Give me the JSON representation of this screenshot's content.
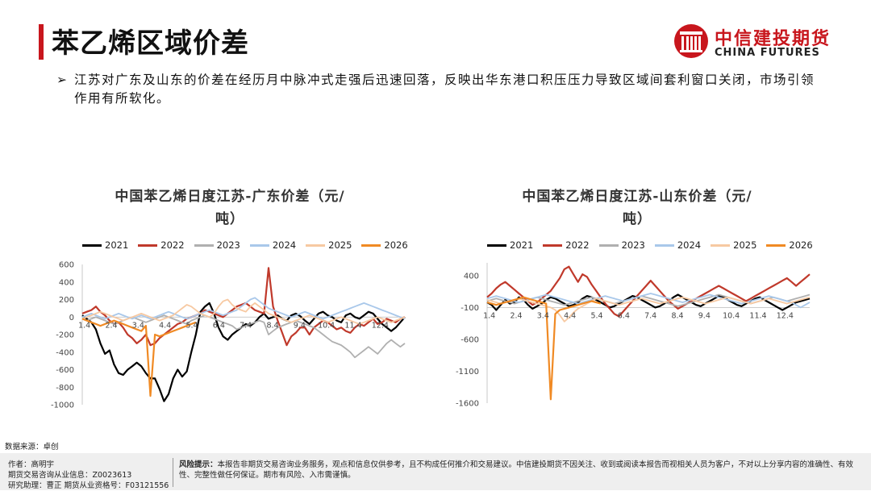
{
  "header": {
    "title": "苯乙烯区域价差",
    "logo_cn": "中信建投期货",
    "logo_en": "CHINA FUTURES"
  },
  "bullet": {
    "arrow": "➢",
    "text": "江苏对广东及山东的价差在经历月中脉冲式走强后迅速回落，反映出华东港口积压压力导致区域间套利窗口关闭，市场引领作用有所软化。"
  },
  "source": "数据来源：卓创",
  "footer": {
    "author": "作者：高明宇",
    "license": "期货交易咨询从业信息：Z0023613",
    "assistant": "研究助理：曹正  期货从业资格号：F03121556",
    "risk_label": "风险提示：",
    "risk_text": "本报告非期货交易咨询业务服务，观点和信息仅供参考，且不构成任何推介和交易建议。中信建投期货不因关注、收到或阅读本报告而视相关人员为客户，不对以上分享内容的准确性、有效性、完整性做任何保证。期市有风险、入市需谨慎。"
  },
  "colors": {
    "accent": "#c8161d",
    "2021": "#000000",
    "2022": "#c0392b",
    "2023": "#b0b0b0",
    "2024": "#a9c8ea",
    "2025": "#f7c9a2",
    "2026": "#f08a24"
  },
  "chart_data": [
    {
      "type": "line",
      "title": "中国苯乙烯日度江苏-广东价差（元/",
      "title2": "吨）",
      "x_ticks": [
        "1.4",
        "2.4",
        "3.4",
        "4.4",
        "5.4",
        "6.4",
        "7.4",
        "8.4",
        "9.4",
        "10.4",
        "11.4",
        "12.4"
      ],
      "y_ticks": [
        600,
        400,
        200,
        0,
        -200,
        -400,
        -600,
        -800,
        -1000
      ],
      "ylim": [
        -1000,
        600
      ],
      "legend": [
        "2021",
        "2022",
        "2023",
        "2024",
        "2025",
        "2026"
      ],
      "legend_position": "top",
      "grid": false,
      "series": [
        {
          "name": "2021",
          "values": [
            20,
            -20,
            -60,
            -140,
            -300,
            -420,
            -380,
            -540,
            -640,
            -660,
            -600,
            -560,
            -520,
            -560,
            -640,
            -700,
            -700,
            -820,
            -960,
            -880,
            -700,
            -600,
            -680,
            -620,
            -400,
            -200,
            60,
            120,
            160,
            40,
            -120,
            -220,
            -260,
            -200,
            -160,
            -120,
            -80,
            -100,
            -60,
            0,
            40,
            -20,
            0,
            20,
            -20,
            -40,
            20,
            40,
            10,
            -40,
            -80,
            -20,
            40,
            60,
            20,
            0,
            -40,
            -60,
            20,
            40,
            0,
            -20,
            20,
            60,
            40,
            -20,
            -80,
            -120,
            -160,
            -120,
            -60,
            0
          ]
        },
        {
          "name": "2022",
          "values": [
            40,
            60,
            80,
            120,
            60,
            20,
            -40,
            -80,
            -60,
            -120,
            -200,
            -240,
            -300,
            -260,
            -200,
            -320,
            -300,
            -240,
            -200,
            -160,
            -120,
            -80,
            -60,
            -20,
            0,
            20,
            40,
            80,
            60,
            40,
            20,
            0,
            40,
            80,
            120,
            140,
            160,
            120,
            80,
            60,
            40,
            560,
            120,
            -40,
            -180,
            -320,
            -220,
            -180,
            -120,
            -120,
            -200,
            -120,
            -80,
            -40,
            -60,
            -100,
            -140,
            -120,
            -160,
            -180,
            -120,
            -80,
            -100,
            -60,
            -20,
            -80,
            -60,
            -20,
            -40,
            -60,
            -20,
            0
          ]
        },
        {
          "name": "2023",
          "values": [
            -20,
            -40,
            -20,
            0,
            -20,
            -40,
            -60,
            -80,
            -60,
            -40,
            -20,
            0,
            -20,
            -40,
            -60,
            -40,
            -20,
            0,
            20,
            0,
            -20,
            -40,
            -60,
            -80,
            -40,
            -20,
            0,
            20,
            0,
            -20,
            -40,
            -60,
            -80,
            -100,
            -140,
            -120,
            -100,
            -80,
            -60,
            -40,
            -60,
            -200,
            -160,
            -120,
            -100,
            -80,
            -60,
            -40,
            -60,
            -80,
            -100,
            -120,
            -160,
            -200,
            -240,
            -280,
            -300,
            -320,
            -360,
            -400,
            -460,
            -420,
            -380,
            -340,
            -380,
            -420,
            -360,
            -300,
            -260,
            -300,
            -340,
            -300
          ]
        },
        {
          "name": "2024",
          "values": [
            0,
            20,
            40,
            20,
            0,
            -20,
            0,
            20,
            40,
            20,
            0,
            -20,
            0,
            20,
            0,
            -20,
            0,
            20,
            40,
            60,
            40,
            20,
            0,
            -20,
            0,
            20,
            40,
            60,
            80,
            60,
            40,
            20,
            40,
            60,
            80,
            120,
            160,
            200,
            220,
            180,
            140,
            100,
            80,
            60,
            40,
            20,
            0,
            20,
            40,
            60,
            40,
            20,
            0,
            -20,
            0,
            20,
            40,
            60,
            80,
            100,
            120,
            140,
            160,
            140,
            120,
            100,
            80,
            60,
            40,
            20,
            0,
            -20
          ]
        },
        {
          "name": "2025",
          "values": [
            -20,
            0,
            20,
            40,
            60,
            40,
            20,
            0,
            -20,
            -40,
            -20,
            0,
            20,
            40,
            20,
            0,
            -20,
            -40,
            -20,
            0,
            20,
            60,
            100,
            140,
            120,
            80,
            40,
            20,
            0,
            40,
            120,
            180,
            200,
            140,
            100,
            80,
            60,
            120,
            160,
            120,
            80,
            40,
            20,
            0,
            -20,
            -40,
            -60,
            -40,
            -20,
            0,
            20,
            0,
            -20,
            -40,
            -60,
            -40,
            -20,
            0,
            -20,
            -40,
            -60,
            -80,
            -60,
            -40,
            -20,
            0,
            -20,
            -40,
            -60,
            -40,
            -20,
            0
          ]
        },
        {
          "name": "2026",
          "values": [
            -20,
            -40,
            -60,
            -80,
            -100,
            -80,
            -60,
            -40,
            -60,
            -80,
            -100,
            -120,
            -140,
            -160,
            -100,
            -900,
            -200,
            -220,
            -200,
            -180,
            -160,
            -140,
            -120,
            -100,
            -80,
            -60
          ]
        }
      ]
    },
    {
      "type": "line",
      "title": "中国苯乙烯日度江苏-山东价差（元/",
      "title2": "吨）",
      "x_ticks": [
        "1.4",
        "2.4",
        "3.4",
        "4.4",
        "5.4",
        "6.4",
        "7.4",
        "8.4",
        "9.4",
        "10.4",
        "11.4",
        "12.4"
      ],
      "y_ticks": [
        400,
        -100,
        -600,
        -1100,
        -1600
      ],
      "ylim": [
        -1600,
        600
      ],
      "legend": [
        "2021",
        "2022",
        "2023",
        "2024",
        "2025",
        "2026"
      ],
      "legend_position": "top",
      "grid": false,
      "series": [
        {
          "name": "2021",
          "values": [
            -20,
            -60,
            -140,
            -60,
            20,
            -40,
            -20,
            60,
            20,
            -60,
            -120,
            -80,
            -40,
            20,
            60,
            40,
            0,
            -40,
            -80,
            -60,
            -20,
            40,
            80,
            60,
            20,
            -20,
            -60,
            -100,
            -80,
            -40,
            0,
            40,
            80,
            60,
            20,
            -20,
            -60,
            -100,
            -80,
            -40,
            0,
            60,
            100,
            60,
            20,
            -20,
            -60,
            -80,
            -40,
            0,
            40,
            80,
            60,
            20,
            -20,
            -60,
            -80,
            -40,
            0,
            40,
            60,
            20,
            -20,
            -60,
            -100,
            -140,
            -100,
            -60,
            -20,
            0,
            20,
            40
          ]
        },
        {
          "name": "2022",
          "values": [
            60,
            120,
            200,
            260,
            300,
            240,
            180,
            120,
            60,
            0,
            -60,
            -20,
            40,
            100,
            160,
            260,
            360,
            500,
            540,
            420,
            300,
            420,
            380,
            260,
            160,
            60,
            -40,
            -120,
            -200,
            -240,
            -160,
            -80,
            0,
            80,
            160,
            240,
            320,
            240,
            160,
            80,
            0,
            -60,
            -120,
            -80,
            -40,
            0,
            40,
            80,
            120,
            160,
            200,
            240,
            200,
            160,
            120,
            80,
            40,
            0,
            40,
            80,
            120,
            160,
            200,
            240,
            280,
            320,
            360,
            300,
            240,
            300,
            360,
            420
          ]
        },
        {
          "name": "2023",
          "values": [
            0,
            20,
            40,
            20,
            0,
            -20,
            -40,
            -20,
            0,
            20,
            40,
            60,
            40,
            20,
            0,
            -20,
            -40,
            -60,
            -40,
            -20,
            0,
            20,
            40,
            60,
            40,
            20,
            0,
            -20,
            -40,
            -20,
            0,
            20,
            40,
            60,
            80,
            60,
            40,
            20,
            0,
            -20,
            -40,
            -60,
            -80,
            -60,
            -40,
            -20,
            0,
            20,
            40,
            60,
            80,
            100,
            80,
            60,
            40,
            20,
            0,
            -20,
            -40,
            -20,
            0,
            20,
            40,
            60,
            40,
            20,
            0,
            20,
            40,
            60,
            80,
            100
          ]
        },
        {
          "name": "2024",
          "values": [
            40,
            60,
            80,
            60,
            40,
            20,
            0,
            -20,
            0,
            20,
            40,
            60,
            80,
            100,
            80,
            60,
            40,
            20,
            0,
            -20,
            -40,
            -20,
            0,
            20,
            40,
            60,
            80,
            60,
            40,
            20,
            0,
            20,
            40,
            60,
            80,
            100,
            120,
            100,
            80,
            60,
            40,
            20,
            0,
            -20,
            0,
            20,
            40,
            60,
            80,
            100,
            80,
            60,
            40,
            20,
            0,
            -20,
            -40,
            -20,
            0,
            20,
            40,
            60,
            80,
            60,
            40,
            20,
            0,
            -20,
            -60,
            -100,
            -60,
            -20
          ]
        },
        {
          "name": "2025",
          "values": [
            20,
            0,
            -20,
            -40,
            -20,
            0,
            20,
            40,
            20,
            0,
            -20,
            -40,
            -60,
            -80,
            -100,
            -140,
            -220,
            -320,
            -260,
            -180,
            -120,
            -80,
            -40,
            0,
            40,
            20,
            0,
            -20,
            -40,
            -60,
            -40,
            -20,
            0,
            20,
            40,
            20,
            0,
            -20,
            -40,
            -20,
            0,
            20,
            40,
            60,
            40,
            20,
            0,
            -20,
            -40,
            -20,
            0,
            20,
            40,
            60,
            40,
            20,
            0,
            -20,
            -40,
            -20,
            0,
            20,
            40,
            20,
            0,
            -20,
            -40,
            -20,
            0,
            20,
            40,
            60
          ]
        },
        {
          "name": "2026",
          "values": [
            -20,
            -40,
            -60,
            -40,
            -20,
            0,
            20,
            40,
            60,
            40,
            20,
            0,
            -20,
            -40,
            -1540,
            -200,
            -140,
            -120,
            -100,
            -80,
            -60,
            -40,
            -20,
            0,
            -20,
            -40
          ]
        }
      ]
    }
  ]
}
